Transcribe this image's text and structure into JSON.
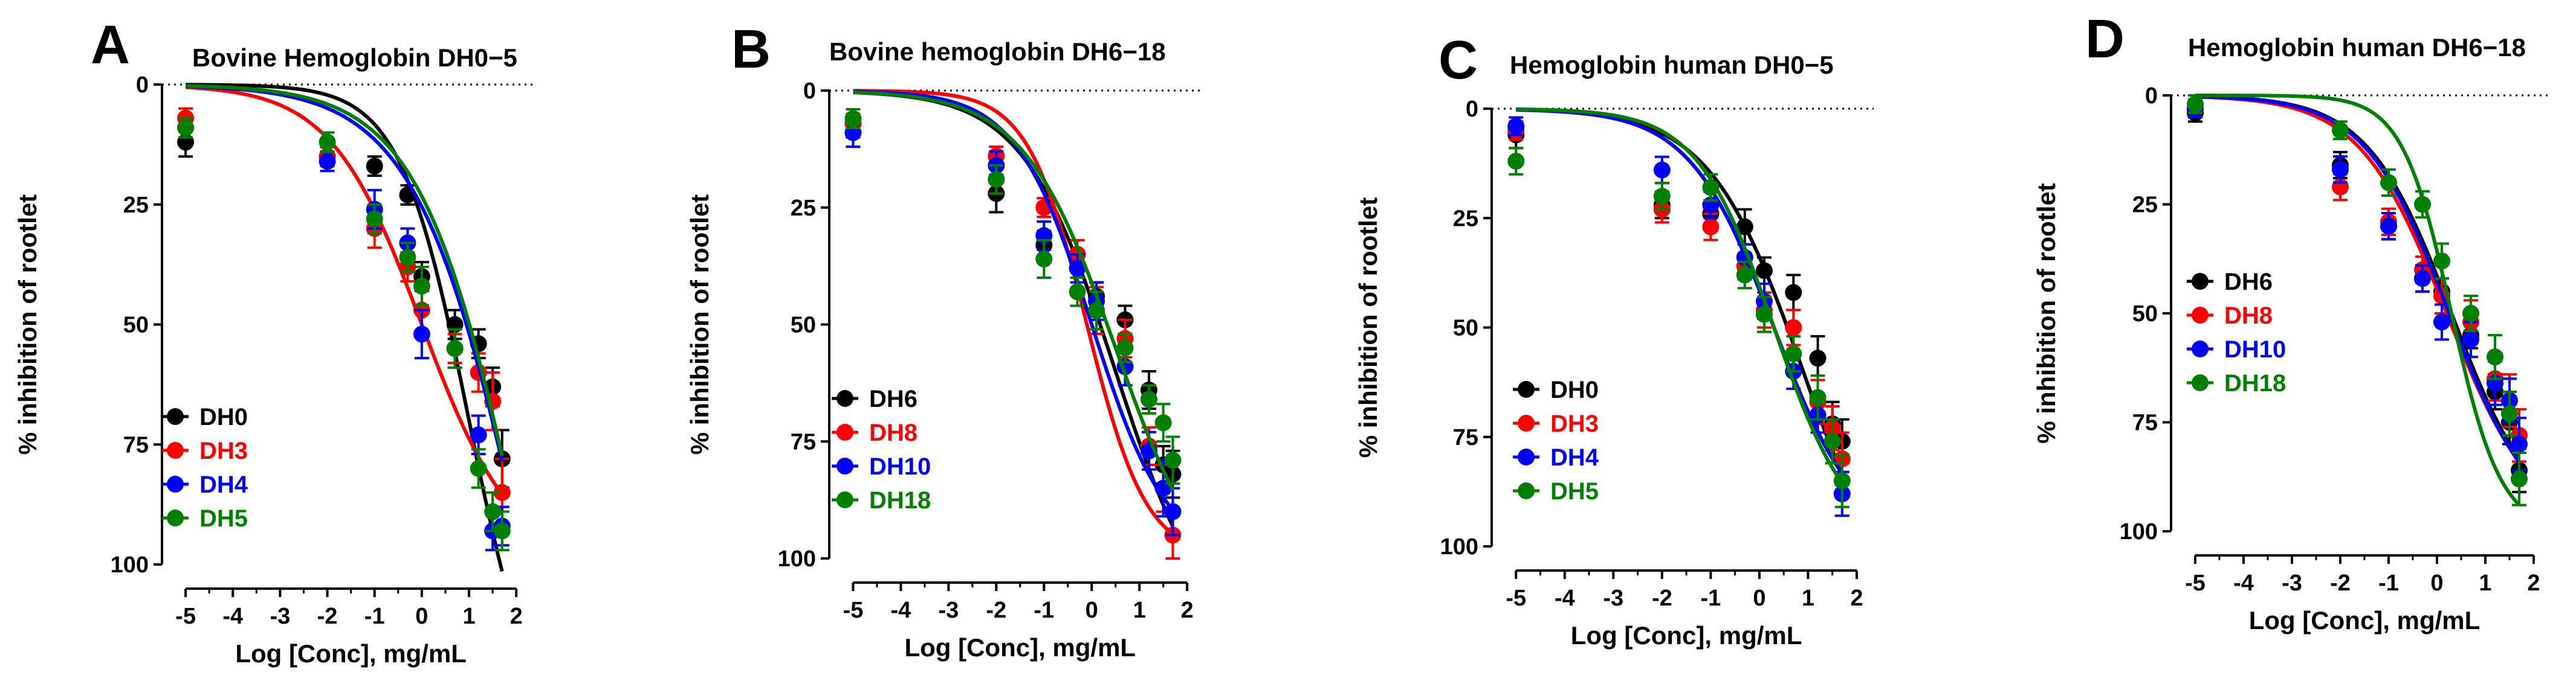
{
  "chart_data": [
    {
      "type": "scatter",
      "panel": "A",
      "title": "Bovine Hemoglobin DH0−5",
      "xlabel": "Log [Conc], mg/mL",
      "ylabel": "% inhibition of rootlet",
      "xlim": [
        -5.5,
        2.1
      ],
      "ylim": [
        0,
        100
      ],
      "y_inverted": true,
      "x_ticks": [
        "-5",
        "-4",
        "-3",
        "-2",
        "-1",
        "0",
        "1",
        "2"
      ],
      "y_ticks": [
        "0",
        "25",
        "50",
        "75",
        "100"
      ],
      "reference_line_y": 0,
      "legend": [
        "DH0",
        "DH3",
        "DH4",
        "DH5"
      ],
      "series": [
        {
          "name": "DH0",
          "color": "#000000",
          "x": [
            -5,
            -2,
            -1,
            -0.3,
            0,
            0.7,
            1.2,
            1.5,
            1.7
          ],
          "y": [
            12,
            15,
            17,
            23,
            40,
            50,
            54,
            63,
            78
          ],
          "err": [
            3,
            2,
            2,
            2,
            3,
            3,
            3,
            4,
            6
          ],
          "curve": {
            "top": 0,
            "bottom": 140,
            "logIC50": 1.0,
            "hill": 0.6
          }
        },
        {
          "name": "DH3",
          "color": "#ff0000",
          "x": [
            -5,
            -2,
            -1,
            -0.3,
            0,
            0.7,
            1.2,
            1.5,
            1.7
          ],
          "y": [
            7,
            15,
            30,
            38,
            47,
            55,
            60,
            66,
            85
          ],
          "err": [
            2,
            2,
            4,
            3,
            5,
            3,
            4,
            6,
            7
          ],
          "curve": {
            "top": 0,
            "bottom": 100,
            "logIC50": 0.0,
            "hill": 0.45
          }
        },
        {
          "name": "DH4",
          "color": "#0000ff",
          "x": [
            -5,
            -2,
            -1,
            -0.3,
            0,
            0.7,
            1.2,
            1.5,
            1.7
          ],
          "y": [
            9,
            16,
            26,
            33,
            52,
            55,
            73,
            93,
            92
          ],
          "err": [
            2,
            2,
            4,
            3,
            5,
            4,
            4,
            4,
            4
          ],
          "curve": {
            "top": 0,
            "bottom": 200,
            "logIC50": 2.2,
            "hill": 0.38
          }
        },
        {
          "name": "DH5",
          "color": "#008000",
          "x": [
            -5,
            -2,
            -1,
            -0.3,
            0,
            0.7,
            1.2,
            1.5,
            1.7
          ],
          "y": [
            9,
            12,
            28,
            36,
            42,
            55,
            80,
            89,
            93
          ],
          "err": [
            2,
            2,
            3,
            3,
            4,
            4,
            4,
            4,
            4
          ],
          "curve": {
            "top": 0,
            "bottom": 200,
            "logIC50": 2.2,
            "hill": 0.4
          }
        }
      ]
    },
    {
      "type": "scatter",
      "panel": "B",
      "title": "Bovine hemoglobin DH6−18",
      "xlabel": "Log [Conc], mg/mL",
      "ylabel": "% inhibition of rootlet",
      "xlim": [
        -5.5,
        2.1
      ],
      "ylim": [
        0,
        100
      ],
      "y_inverted": true,
      "x_ticks": [
        "-5",
        "-4",
        "-3",
        "-2",
        "-1",
        "0",
        "1",
        "2"
      ],
      "y_ticks": [
        "0",
        "25",
        "50",
        "75",
        "100"
      ],
      "reference_line_y": 0,
      "legend": [
        "DH6",
        "DH8",
        "DH10",
        "DH18"
      ],
      "series": [
        {
          "name": "DH6",
          "color": "#000000",
          "x": [
            -5,
            -2,
            -1,
            -0.3,
            0.1,
            0.7,
            1.2,
            1.5,
            1.7
          ],
          "y": [
            7,
            22,
            33,
            35,
            44,
            49,
            64,
            80,
            82
          ],
          "err": [
            3,
            4,
            3,
            3,
            3,
            3,
            4,
            4,
            5
          ],
          "curve": {
            "top": 0,
            "bottom": 120,
            "logIC50": 0.5,
            "hill": 0.45
          }
        },
        {
          "name": "DH8",
          "color": "#ff0000",
          "x": [
            -5,
            -2,
            -1,
            -0.3,
            0.1,
            0.7,
            1.2,
            1.5,
            1.7
          ],
          "y": [
            7,
            14,
            25,
            35,
            47,
            53,
            76,
            85,
            95
          ],
          "err": [
            2,
            2,
            2,
            3,
            5,
            4,
            4,
            5,
            5
          ],
          "curve": {
            "top": 0,
            "bottom": 100,
            "logIC50": -0.1,
            "hill": 0.7
          }
        },
        {
          "name": "DH10",
          "color": "#0000ff",
          "x": [
            -5,
            -2,
            -1,
            -0.3,
            0.1,
            0.7,
            1.2,
            1.5,
            1.7
          ],
          "y": [
            9,
            16,
            31,
            38,
            45,
            59,
            77,
            85,
            90
          ],
          "err": [
            3,
            3,
            3,
            3,
            4,
            4,
            4,
            6,
            5
          ],
          "curve": {
            "top": 0,
            "bottom": 100,
            "logIC50": 0.0,
            "hill": 0.55
          }
        },
        {
          "name": "DH18",
          "color": "#008000",
          "x": [
            -5,
            -2,
            -1,
            -0.3,
            0.1,
            0.7,
            1.2,
            1.5,
            1.7
          ],
          "y": [
            6,
            19,
            36,
            43,
            47,
            55,
            66,
            71,
            79
          ],
          "err": [
            2,
            3,
            4,
            3,
            4,
            3,
            3,
            4,
            5
          ],
          "curve": {
            "top": 0,
            "bottom": 110,
            "logIC50": 0.5,
            "hill": 0.45
          }
        }
      ]
    },
    {
      "type": "scatter",
      "panel": "C",
      "title": "Hemoglobin human DH0−5",
      "xlabel": "Log [Conc], mg/mL",
      "ylabel": "% inhibition of rootlet",
      "xlim": [
        -5.5,
        2.1
      ],
      "ylim": [
        0,
        100
      ],
      "y_inverted": true,
      "x_ticks": [
        "-5",
        "-4",
        "-3",
        "-2",
        "-1",
        "0",
        "1",
        "2"
      ],
      "y_ticks": [
        "0",
        "25",
        "50",
        "75",
        "100"
      ],
      "reference_line_y": 0,
      "legend": [
        "DH0",
        "DH3",
        "DH4",
        "DH5"
      ],
      "series": [
        {
          "name": "DH0",
          "color": "#000000",
          "x": [
            -5,
            -2,
            -1,
            -0.3,
            0.1,
            0.7,
            1.2,
            1.5,
            1.7
          ],
          "y": [
            6,
            22,
            24,
            27,
            37,
            42,
            57,
            72,
            76
          ],
          "err": [
            3,
            3,
            3,
            4,
            3,
            4,
            5,
            5,
            5
          ],
          "curve": {
            "top": 0,
            "bottom": 120,
            "logIC50": 0.9,
            "hill": 0.45
          }
        },
        {
          "name": "DH3",
          "color": "#ff0000",
          "x": [
            -5,
            -2,
            -1,
            -0.3,
            0.1,
            0.7,
            1.2,
            1.5,
            1.7
          ],
          "y": [
            5,
            23,
            27,
            36,
            46,
            50,
            67,
            73,
            80
          ],
          "err": [
            2,
            3,
            3,
            3,
            4,
            4,
            5,
            5,
            6
          ],
          "curve": {
            "top": 0,
            "bottom": 100,
            "logIC50": 0.3,
            "hill": 0.5
          }
        },
        {
          "name": "DH4",
          "color": "#0000ff",
          "x": [
            -5,
            -2,
            -1,
            -0.3,
            0.1,
            0.7,
            1.2,
            1.5,
            1.7
          ],
          "y": [
            4,
            14,
            22,
            34,
            44,
            60,
            70,
            76,
            88
          ],
          "err": [
            2,
            3,
            3,
            3,
            4,
            4,
            4,
            5,
            5
          ],
          "curve": {
            "top": 0,
            "bottom": 100,
            "logIC50": 0.3,
            "hill": 0.5
          }
        },
        {
          "name": "DH5",
          "color": "#008000",
          "x": [
            -5,
            -2,
            -1,
            -0.3,
            0.1,
            0.7,
            1.2,
            1.5,
            1.7
          ],
          "y": [
            12,
            20,
            18,
            38,
            47,
            56,
            66,
            76,
            85
          ],
          "err": [
            3,
            3,
            3,
            3,
            4,
            4,
            5,
            5,
            6
          ],
          "curve": {
            "top": 0,
            "bottom": 100,
            "logIC50": 0.3,
            "hill": 0.55
          }
        }
      ]
    },
    {
      "type": "scatter",
      "panel": "D",
      "title": "Hemoglobin human DH6−18",
      "xlabel": "Log [Conc], mg/mL",
      "ylabel": "% inhibition of rootlet",
      "xlim": [
        -5.5,
        2.1
      ],
      "ylim": [
        0,
        100
      ],
      "y_inverted": true,
      "x_ticks": [
        "-5",
        "-4",
        "-3",
        "-2",
        "-1",
        "0",
        "1",
        "2"
      ],
      "y_ticks": [
        "0",
        "25",
        "50",
        "75",
        "100"
      ],
      "reference_line_y": 0,
      "legend": [
        "DH6",
        "DH8",
        "DH10",
        "DH18"
      ],
      "series": [
        {
          "name": "DH6",
          "color": "#000000",
          "x": [
            -5,
            -2,
            -1,
            -0.3,
            0.1,
            0.7,
            1.2,
            1.5,
            1.7
          ],
          "y": [
            4,
            16,
            30,
            42,
            45,
            55,
            68,
            75,
            86
          ],
          "err": [
            2,
            3,
            3,
            3,
            3,
            3,
            4,
            5,
            5
          ],
          "curve": {
            "top": 0,
            "bottom": 100,
            "logIC50": 0.3,
            "hill": 0.5
          }
        },
        {
          "name": "DH8",
          "color": "#ff0000",
          "x": [
            -5,
            -2,
            -1,
            -0.3,
            0.1,
            0.7,
            1.2,
            1.5,
            1.7
          ],
          "y": [
            3,
            21,
            29,
            40,
            46,
            52,
            65,
            70,
            78
          ],
          "err": [
            2,
            3,
            3,
            3,
            4,
            5,
            5,
            6,
            6
          ],
          "curve": {
            "top": 0,
            "bottom": 100,
            "logIC50": 0.2,
            "hill": 0.48
          }
        },
        {
          "name": "DH10",
          "color": "#0000ff",
          "x": [
            -5,
            -2,
            -1,
            -0.3,
            0.1,
            0.7,
            1.2,
            1.5,
            1.7
          ],
          "y": [
            3,
            17,
            30,
            42,
            52,
            56,
            66,
            70,
            80
          ],
          "err": [
            2,
            3,
            3,
            3,
            4,
            4,
            5,
            5,
            6
          ],
          "curve": {
            "top": 0,
            "bottom": 100,
            "logIC50": 0.25,
            "hill": 0.5
          }
        },
        {
          "name": "DH18",
          "color": "#008000",
          "x": [
            -5,
            -2,
            -1,
            -0.3,
            0.1,
            0.7,
            1.2,
            1.5,
            1.7
          ],
          "y": [
            2,
            8,
            20,
            25,
            38,
            50,
            60,
            73,
            88
          ],
          "err": [
            2,
            2,
            3,
            3,
            4,
            4,
            5,
            5,
            6
          ],
          "curve": {
            "top": 0,
            "bottom": 100,
            "logIC50": 0.3,
            "hill": 0.85
          }
        }
      ]
    }
  ]
}
